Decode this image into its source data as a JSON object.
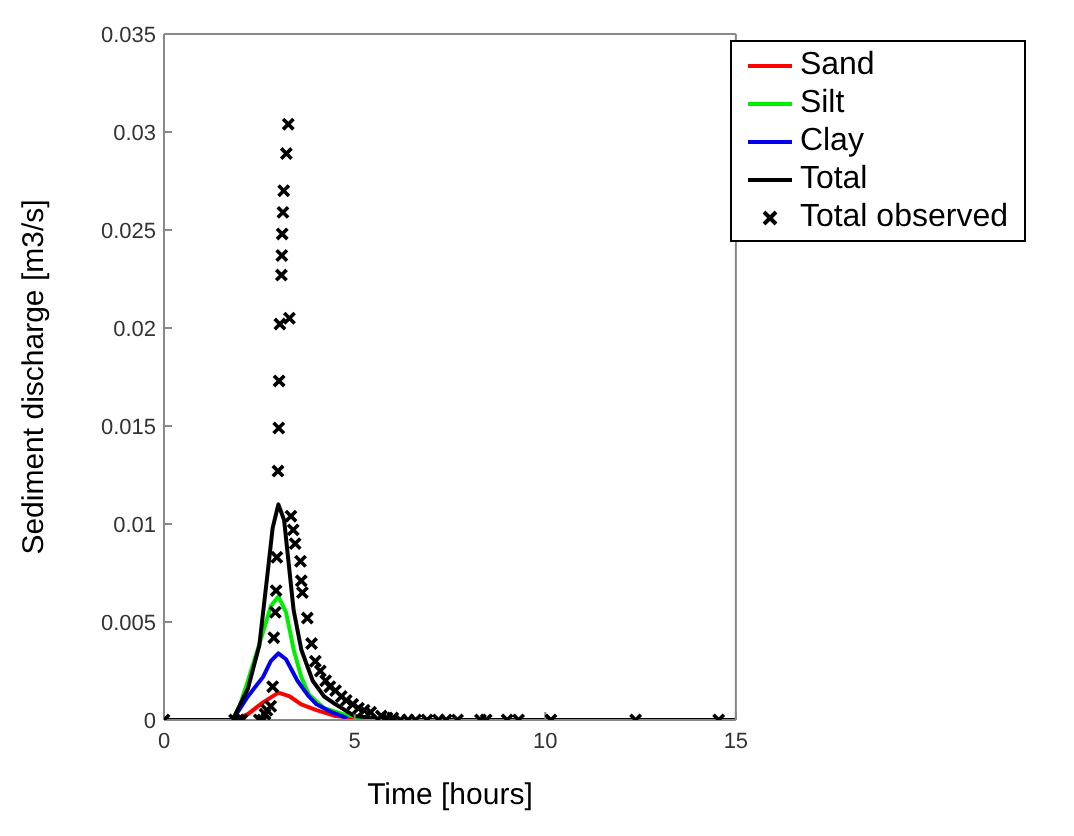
{
  "chart_data": {
    "type": "line",
    "xlabel": "Time [hours]",
    "ylabel": "Sediment discharge [m3/s]",
    "xlim": [
      0,
      15
    ],
    "xticks": [
      0,
      5,
      10,
      15
    ],
    "ylim": [
      0,
      0.035
    ],
    "yticks": [
      0,
      0.005,
      0.01,
      0.015,
      0.02,
      0.025,
      0.03,
      0.035
    ],
    "legend": "top right",
    "grid": false,
    "line_style": "solid",
    "series": [
      {
        "name": "Sand",
        "color": "#ff0000",
        "x": [
          1.8,
          2.2,
          2.6,
          3.0,
          3.3,
          3.6,
          4.0,
          4.5,
          5.0
        ],
        "values": [
          0,
          0.0003,
          0.0009,
          0.0014,
          0.0012,
          0.0008,
          0.0005,
          0.0002,
          0.0001
        ]
      },
      {
        "name": "Silt",
        "color": "#00ee00",
        "x": [
          1.8,
          2.0,
          2.2,
          2.6,
          2.8,
          3.0,
          3.2,
          3.4,
          3.6,
          3.8,
          4.2,
          4.7,
          5.2
        ],
        "values": [
          0,
          0.0008,
          0.002,
          0.0045,
          0.0058,
          0.0063,
          0.0055,
          0.0036,
          0.0022,
          0.0013,
          0.0006,
          0.0003,
          0.0001
        ]
      },
      {
        "name": "Clay",
        "color": "#0000ee",
        "x": [
          1.8,
          2.2,
          2.6,
          2.8,
          3.0,
          3.2,
          3.5,
          3.8,
          4.0,
          4.4,
          4.8
        ],
        "values": [
          0,
          0.0012,
          0.0022,
          0.003,
          0.0034,
          0.0031,
          0.002,
          0.0012,
          0.0008,
          0.0004,
          0.0001
        ]
      },
      {
        "name": "Total",
        "color": "#000000",
        "x": [
          0,
          1.8,
          2.0,
          2.2,
          2.5,
          2.7,
          2.85,
          3.0,
          3.15,
          3.4,
          3.6,
          3.9,
          4.2,
          4.5,
          5.0,
          5.5,
          6.0,
          15
        ],
        "values": [
          0,
          0,
          0.0008,
          0.0016,
          0.0038,
          0.0072,
          0.0098,
          0.011,
          0.0102,
          0.0056,
          0.0036,
          0.002,
          0.0012,
          0.0008,
          0.0002,
          0.0001,
          0,
          0
        ]
      },
      {
        "name": "Total observed",
        "type": "scatter",
        "marker": "cross",
        "color": "#000000",
        "x": [
          0,
          1.85,
          1.95,
          2.05,
          2.5,
          2.59,
          2.65,
          2.7,
          2.8,
          2.85,
          2.88,
          2.92,
          2.94,
          2.96,
          2.99,
          3.01,
          3.02,
          3.04,
          3.08,
          3.09,
          3.1,
          3.12,
          3.14,
          3.21,
          3.26,
          3.29,
          3.33,
          3.39,
          3.44,
          3.58,
          3.6,
          3.63,
          3.76,
          3.87,
          3.97,
          4.1,
          4.24,
          4.35,
          4.5,
          4.65,
          4.78,
          4.95,
          5.1,
          5.25,
          5.42,
          5.7,
          5.85,
          6.0,
          6.2,
          6.4,
          6.6,
          6.9,
          7.2,
          7.4,
          7.7,
          8.3,
          8.45,
          9.0,
          9.3,
          10.15,
          12.37,
          14.55
        ],
        "values": [
          0,
          0,
          0,
          0,
          0,
          0,
          0.0003,
          0.0005,
          0.0007,
          0.0017,
          0.0042,
          0.0055,
          0.0066,
          0.0083,
          0.0127,
          0.0149,
          0.0173,
          0.0202,
          0.0227,
          0.0237,
          0.0248,
          0.0259,
          0.027,
          0.0289,
          0.0304,
          0.0205,
          0.0104,
          0.0097,
          0.009,
          0.0081,
          0.0071,
          0.0065,
          0.0052,
          0.0039,
          0.003,
          0.0025,
          0.002,
          0.0017,
          0.0015,
          0.0012,
          0.001,
          0.0008,
          0.0006,
          0.0005,
          0.0004,
          0.0002,
          0.0001,
          0.0001,
          0,
          0,
          0,
          0,
          0,
          0,
          0,
          0,
          0,
          0,
          0,
          0,
          0,
          0
        ]
      }
    ]
  }
}
